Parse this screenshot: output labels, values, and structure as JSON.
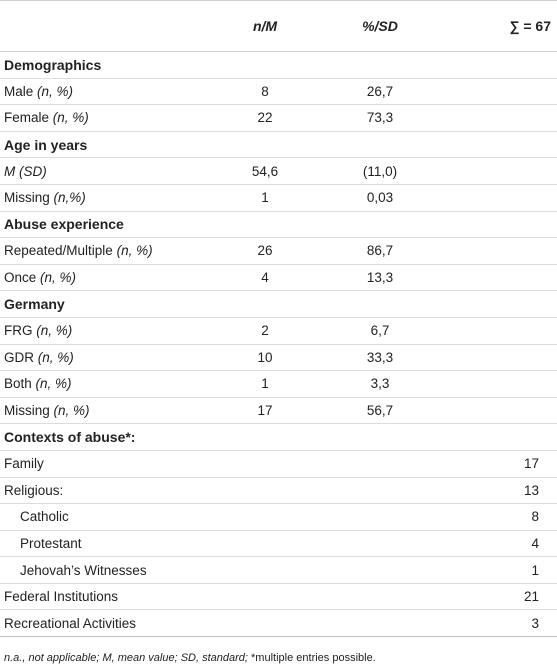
{
  "header": {
    "col1": "",
    "col2": "n/M",
    "col3": "%/SD",
    "col4": "∑ = 67"
  },
  "rows": [
    {
      "type": "section",
      "label": "Demographics"
    },
    {
      "type": "data",
      "label": "Male",
      "qualifier": "(n, %)",
      "n": "8",
      "pct": "26,7",
      "total": ""
    },
    {
      "type": "data",
      "label": "Female",
      "qualifier": "(n, %)",
      "n": "22",
      "pct": "73,3",
      "total": ""
    },
    {
      "type": "section",
      "label": "Age in years"
    },
    {
      "type": "data",
      "label": "",
      "qualifier": "M (SD)",
      "n": "54,6",
      "pct": "(11,0)",
      "total": ""
    },
    {
      "type": "data",
      "label": "Missing",
      "qualifier": "(n,%)",
      "n": "1",
      "pct": "0,03",
      "total": ""
    },
    {
      "type": "section",
      "label": "Abuse experience"
    },
    {
      "type": "data",
      "label": "Repeated/Multiple",
      "qualifier": "(n, %)",
      "n": "26",
      "pct": "86,7",
      "total": ""
    },
    {
      "type": "data",
      "label": "Once",
      "qualifier": "(n, %)",
      "n": "4",
      "pct": "13,3",
      "total": ""
    },
    {
      "type": "section",
      "label": "Germany"
    },
    {
      "type": "data",
      "label": "FRG",
      "qualifier": "(n, %)",
      "n": "2",
      "pct": "6,7",
      "total": ""
    },
    {
      "type": "data",
      "label": "GDR",
      "qualifier": "(n, %)",
      "n": "10",
      "pct": "33,3",
      "total": ""
    },
    {
      "type": "data",
      "label": "Both",
      "qualifier": "(n, %)",
      "n": "1",
      "pct": "3,3",
      "total": ""
    },
    {
      "type": "data",
      "label": "Missing",
      "qualifier": "(n, %)",
      "n": "17",
      "pct": "56,7",
      "total": ""
    },
    {
      "type": "section",
      "label": "Contexts of abuse*:"
    },
    {
      "type": "data",
      "label": "Family",
      "qualifier": "",
      "n": "",
      "pct": "",
      "total": "17"
    },
    {
      "type": "data",
      "label": "Religious:",
      "qualifier": "",
      "n": "",
      "pct": "",
      "total": "13"
    },
    {
      "type": "data",
      "label": "Catholic",
      "qualifier": "",
      "n": "",
      "pct": "",
      "total": "8",
      "indent": true
    },
    {
      "type": "data",
      "label": "Protestant",
      "qualifier": "",
      "n": "",
      "pct": "",
      "total": "4",
      "indent": true
    },
    {
      "type": "data",
      "label": "Jehovah’s Witnesses",
      "qualifier": "",
      "n": "",
      "pct": "",
      "total": "1",
      "indent": true
    },
    {
      "type": "data",
      "label": "Federal Institutions",
      "qualifier": "",
      "n": "",
      "pct": "",
      "total": "21"
    },
    {
      "type": "data",
      "label": "Recreational Activities",
      "qualifier": "",
      "n": "",
      "pct": "",
      "total": "3"
    }
  ],
  "footnote": {
    "part1": "n.a., not applicable; M, mean value; SD, standard; ",
    "part2": "*multiple entries possible."
  }
}
